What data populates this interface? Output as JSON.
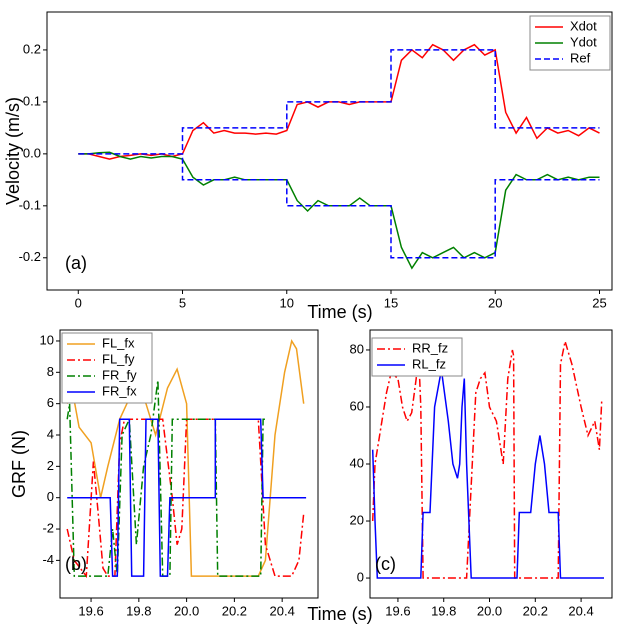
{
  "chart_data": [
    {
      "type": "line",
      "xlabel": "Time (s)",
      "ylabel": "Velocity (m/s)",
      "annotation": "(a)",
      "legend": "upper right",
      "xlim": [
        -1.5,
        25.6
      ],
      "xticks": [
        0,
        5,
        10,
        15,
        20,
        25
      ],
      "ylim": [
        -0.262,
        0.273
      ],
      "yticks": [
        -0.2,
        -0.1,
        {
          "value": 0,
          "label": "0.0"
        },
        0.1,
        0.2
      ],
      "series": [
        {
          "name": "Xdot",
          "color": "#ff0000",
          "linestyle": "solid",
          "x": [
            0,
            0.5,
            1,
            1.5,
            2,
            2.5,
            3,
            3.5,
            4,
            4.5,
            5,
            5.5,
            6,
            6.5,
            7,
            7.5,
            8,
            8.5,
            9,
            9.5,
            10,
            10.5,
            11,
            11.5,
            12,
            12.5,
            13,
            13.5,
            14,
            14.5,
            15,
            15.5,
            16,
            16.5,
            17,
            17.5,
            18,
            18.5,
            19,
            19.5,
            20,
            20.5,
            21,
            21.5,
            22,
            22.5,
            23,
            23.5,
            24,
            24.5,
            25
          ],
          "values": [
            0,
            0,
            -0.005,
            -0.01,
            -0.005,
            -0.003,
            0,
            -0.003,
            0,
            -0.005,
            0,
            0.045,
            0.06,
            0.04,
            0.045,
            0.04,
            0.04,
            0.038,
            0.04,
            0.038,
            0.045,
            0.095,
            0.1,
            0.09,
            0.1,
            0.1,
            0.095,
            0.1,
            0.1,
            0.1,
            0.1,
            0.18,
            0.2,
            0.185,
            0.21,
            0.2,
            0.18,
            0.2,
            0.21,
            0.19,
            0.2,
            0.08,
            0.04,
            0.07,
            0.03,
            0.05,
            0.04,
            0.045,
            0.035,
            0.05,
            0.04
          ]
        },
        {
          "name": "Ydot",
          "color": "#008000",
          "linestyle": "solid",
          "x": [
            0,
            0.5,
            1,
            1.5,
            2,
            2.5,
            3,
            3.5,
            4,
            4.5,
            5,
            5.5,
            6,
            6.5,
            7,
            7.5,
            8,
            8.5,
            9,
            9.5,
            10,
            10.5,
            11,
            11.5,
            12,
            12.5,
            13,
            13.5,
            14,
            14.5,
            15,
            15.5,
            16,
            16.5,
            17,
            17.5,
            18,
            18.5,
            19,
            19.5,
            20,
            20.5,
            21,
            21.5,
            22,
            22.5,
            23,
            23.5,
            24,
            24.5,
            25
          ],
          "values": [
            0,
            0,
            0.002,
            0.003,
            -0.005,
            -0.01,
            -0.005,
            -0.008,
            -0.005,
            -0.005,
            -0.01,
            -0.045,
            -0.06,
            -0.05,
            -0.05,
            -0.045,
            -0.05,
            -0.05,
            -0.05,
            -0.05,
            -0.05,
            -0.09,
            -0.11,
            -0.09,
            -0.1,
            -0.1,
            -0.1,
            -0.085,
            -0.1,
            -0.1,
            -0.1,
            -0.18,
            -0.22,
            -0.19,
            -0.2,
            -0.19,
            -0.18,
            -0.2,
            -0.19,
            -0.2,
            -0.19,
            -0.07,
            -0.04,
            -0.05,
            -0.05,
            -0.04,
            -0.05,
            -0.045,
            -0.05,
            -0.045,
            -0.045
          ]
        },
        {
          "name": "Ref",
          "color": "#0000ff",
          "linestyle": "dashed",
          "x": [
            0,
            5,
            5,
            10,
            10,
            15,
            15,
            20,
            20,
            25,
            null,
            0,
            5,
            5,
            10,
            10,
            15,
            15,
            20,
            20,
            25
          ],
          "values": [
            0,
            0,
            0.05,
            0.05,
            0.1,
            0.1,
            0.2,
            0.2,
            0.05,
            0.05,
            null,
            0,
            0,
            -0.05,
            -0.05,
            -0.1,
            -0.1,
            -0.2,
            -0.2,
            -0.05,
            -0.05
          ]
        }
      ]
    },
    {
      "type": "line",
      "xlabel": "Time (s)",
      "ylabel": "GRF (N)",
      "annotation": "(b)",
      "legend": "upper left",
      "xlim": [
        19.47,
        20.55
      ],
      "xticks": [
        19.6,
        19.8,
        {
          "value": 20,
          "label": "20.0"
        },
        20.2,
        20.4
      ],
      "ylim": [
        -6.4,
        10.7
      ],
      "yticks": [
        -4,
        -2,
        0,
        2,
        4,
        6,
        8,
        10
      ],
      "series": [
        {
          "name": "FL_fx",
          "color": "#f0a020",
          "linestyle": "solid",
          "x": [
            19.5,
            19.52,
            19.55,
            19.6,
            19.64,
            19.67,
            19.72,
            19.78,
            19.83,
            19.87,
            19.92,
            19.96,
            20.0,
            20.02,
            20.1,
            20.2,
            20.3,
            20.33,
            20.37,
            20.41,
            20.44,
            20.46,
            20.49
          ],
          "values": [
            6,
            7,
            4.5,
            3.5,
            0,
            2,
            5,
            7,
            6,
            4,
            7,
            8.2,
            6,
            -5,
            -5,
            -5,
            -5,
            -4,
            4,
            8,
            10,
            9.5,
            6
          ]
        },
        {
          "name": "FL_fy",
          "color": "#ff0000",
          "linestyle": "dashdot",
          "x": [
            19.5,
            19.53,
            19.58,
            19.61,
            19.63,
            19.65,
            19.67,
            19.7,
            19.72,
            19.74,
            19.9,
            19.94,
            19.96,
            19.98,
            20.0,
            20.05,
            20.12,
            20.3,
            20.33,
            20.37,
            20.4,
            20.44,
            20.47,
            20.49
          ],
          "values": [
            -2,
            -4,
            -5,
            2.3,
            -1,
            -4.5,
            -5,
            -5,
            3.5,
            5,
            5,
            0,
            -3,
            -2,
            5,
            5,
            5,
            5,
            -3,
            -5,
            -5,
            -5,
            -4,
            -1
          ]
        },
        {
          "name": "FR_fy",
          "color": "#008000",
          "linestyle": "dashdot",
          "x": [
            19.5,
            19.51,
            19.53,
            19.67,
            19.69,
            19.71,
            19.73,
            19.76,
            19.79,
            19.82,
            19.85,
            19.88,
            19.9,
            19.93,
            19.94,
            20.12,
            20.13,
            20.31,
            20.32,
            20.34
          ],
          "values": [
            5,
            6,
            -5,
            -5,
            -2,
            -5,
            4,
            5,
            -3,
            2,
            4,
            7.5,
            -5,
            -5,
            5,
            5,
            -5,
            -5,
            5,
            5
          ]
        },
        {
          "name": "FR_fx",
          "color": "#0000ff",
          "linestyle": "solid",
          "x": [
            19.5,
            19.68,
            19.69,
            19.71,
            19.72,
            19.76,
            19.77,
            19.82,
            19.83,
            19.88,
            19.89,
            19.92,
            19.93,
            20.12,
            20.12,
            20.31,
            20.32,
            20.5
          ],
          "values": [
            0,
            0,
            -5,
            -5,
            5,
            5,
            -5,
            -5,
            5,
            5,
            -5,
            -5,
            0,
            0,
            5,
            5,
            0,
            0
          ]
        }
      ]
    },
    {
      "type": "line",
      "annotation": "(c)",
      "legend": "upper left",
      "xlim": [
        19.478,
        20.535
      ],
      "xticks": [
        19.6,
        19.8,
        {
          "value": 20,
          "label": "20.0"
        },
        20.2,
        20.4
      ],
      "ylim": [
        -7,
        87
      ],
      "yticks": [
        0,
        20,
        40,
        60,
        80
      ],
      "series": [
        {
          "name": "RR_fz",
          "color": "#ff0000",
          "linestyle": "dashdot",
          "x": [
            19.49,
            19.5,
            19.53,
            19.55,
            19.57,
            19.6,
            19.62,
            19.64,
            19.66,
            19.68,
            19.69,
            19.7,
            19.71,
            19.75,
            19.8,
            19.85,
            19.9,
            19.94,
            19.96,
            19.98,
            20.0,
            20.03,
            20.06,
            20.08,
            20.1,
            20.105,
            20.11,
            20.3,
            20.31,
            20.33,
            20.36,
            20.4,
            20.43,
            20.46,
            20.48,
            20.49
          ],
          "values": [
            20,
            40,
            55,
            65,
            72,
            70,
            60,
            55,
            58,
            70,
            80,
            60,
            0,
            0,
            0,
            0,
            0,
            65,
            70,
            72,
            60,
            55,
            40,
            70,
            80,
            78,
            0,
            0,
            75,
            83,
            75,
            60,
            50,
            55,
            45,
            62
          ]
        },
        {
          "name": "RL_fz",
          "color": "#0000ff",
          "linestyle": "solid",
          "x": [
            19.49,
            19.5,
            19.51,
            19.52,
            19.7,
            19.71,
            19.74,
            19.76,
            19.79,
            19.82,
            19.84,
            19.86,
            19.87,
            19.88,
            19.89,
            19.9,
            19.92,
            20.12,
            20.13,
            20.18,
            20.2,
            20.22,
            20.24,
            20.26,
            20.3,
            20.31,
            20.5
          ],
          "values": [
            45,
            20,
            0,
            0,
            0,
            23,
            23,
            60,
            73,
            55,
            40,
            35,
            40,
            60,
            70,
            40,
            0,
            0,
            23,
            23,
            40,
            50,
            40,
            23,
            23,
            0,
            0
          ]
        }
      ]
    }
  ]
}
